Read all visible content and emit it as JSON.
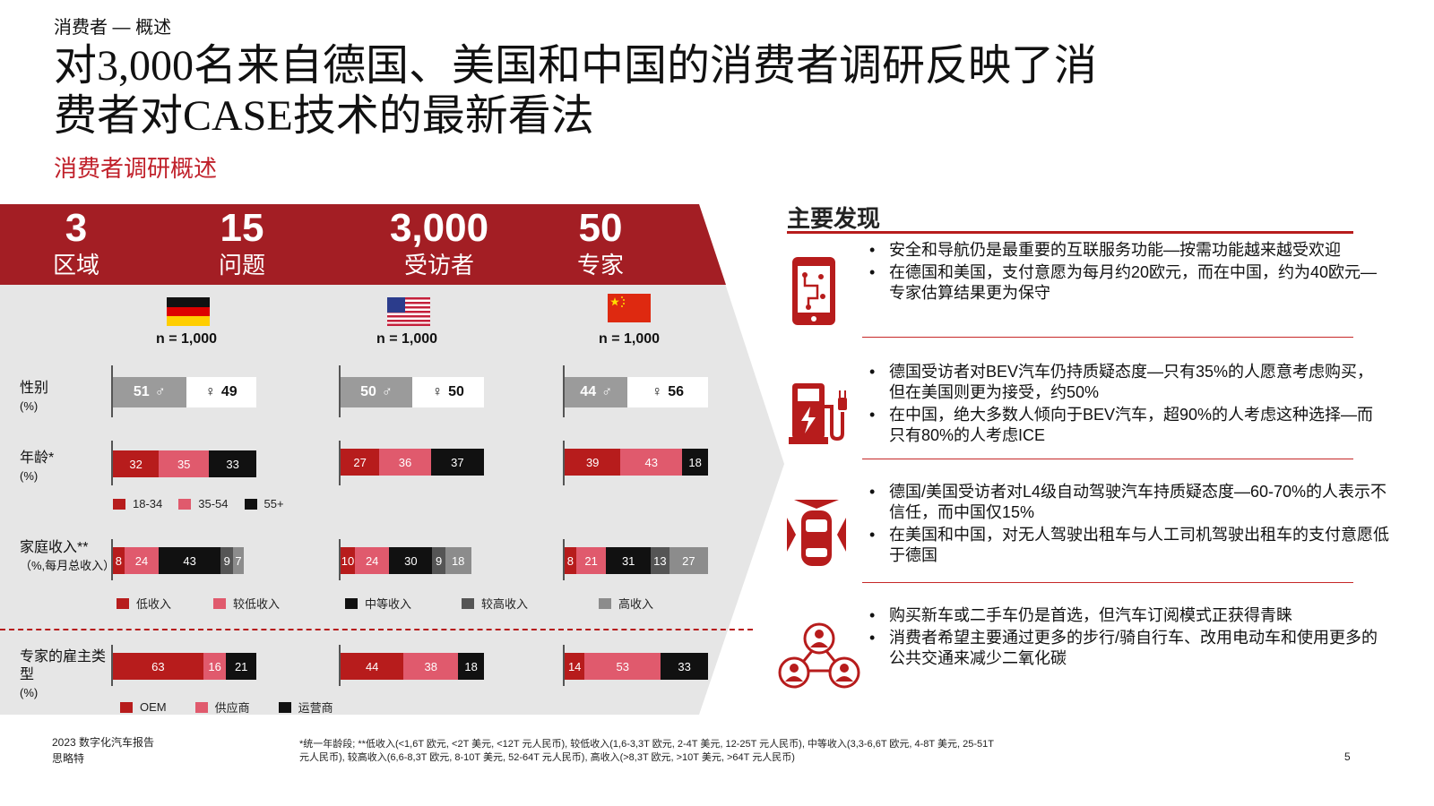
{
  "header": {
    "breadcrumb": "消费者 — 概述",
    "title_line1": "对3,000名来自德国、美国和中国的消费者调研反映了消",
    "title_line2": "费者对CASE技术的最新看法",
    "subtitle": "消费者调研概述"
  },
  "kpis": [
    {
      "num": "3",
      "label": "区域"
    },
    {
      "num": "15",
      "label": "问题"
    },
    {
      "num": "3,000",
      "label": "受访者"
    },
    {
      "num": "50",
      "label": "专家"
    }
  ],
  "countries": [
    {
      "name": "germany",
      "n": "n = 1,000"
    },
    {
      "name": "usa",
      "n": "n = 1,000"
    },
    {
      "name": "china",
      "n": "n = 1,000"
    }
  ],
  "row_labels": {
    "gender": "性别",
    "gender_unit": "(%)",
    "age": "年龄*",
    "age_unit": "(%)",
    "income": "家庭收入**",
    "income_unit": "（%,每月总收入）",
    "employer": "专家的雇主类型",
    "employer_unit": "(%)"
  },
  "colors": {
    "dark_red": "#b71c1c",
    "pink": "#e05a6d",
    "black": "#111111",
    "dark_grey": "#555555",
    "grey": "#8c8c8c",
    "light_grey": "#e6e6e6",
    "accent": "#b71c1c"
  },
  "gender": [
    {
      "male": "51",
      "female": "49",
      "male_pct": 51,
      "female_pct": 49
    },
    {
      "male": "50",
      "female": "50",
      "male_pct": 50,
      "female_pct": 50
    },
    {
      "male": "44",
      "female": "56",
      "male_pct": 44,
      "female_pct": 56
    }
  ],
  "age": [
    {
      "values": [
        32,
        35,
        33
      ],
      "labels": [
        "32",
        "35",
        "33"
      ]
    },
    {
      "values": [
        27,
        36,
        37
      ],
      "labels": [
        "27",
        "36",
        "37"
      ]
    },
    {
      "values": [
        39,
        43,
        18
      ],
      "labels": [
        "39",
        "43",
        "18"
      ]
    }
  ],
  "age_legend": [
    "18-34",
    "35-54",
    "55+"
  ],
  "income": [
    {
      "values": [
        8,
        24,
        43,
        9,
        7
      ],
      "labels": [
        "8",
        "24",
        "43",
        "9",
        "7"
      ]
    },
    {
      "values": [
        10,
        24,
        30,
        9,
        18
      ],
      "labels": [
        "10",
        "24",
        "30",
        "9",
        "18"
      ]
    },
    {
      "values": [
        8,
        21,
        31,
        13,
        27
      ],
      "labels": [
        "8",
        "21",
        "31",
        "13",
        "27"
      ]
    }
  ],
  "income_legend": [
    "低收入",
    "较低收入",
    "中等收入",
    "较高收入",
    "高收入"
  ],
  "employer": [
    {
      "values": [
        63,
        16,
        21
      ],
      "labels": [
        "63",
        "16",
        "21"
      ]
    },
    {
      "values": [
        44,
        38,
        18
      ],
      "labels": [
        "44",
        "38",
        "18"
      ]
    },
    {
      "values": [
        14,
        53,
        33
      ],
      "labels": [
        "14",
        "53",
        "33"
      ]
    }
  ],
  "employer_legend": [
    "OEM",
    "供应商",
    "运营商"
  ],
  "findings": {
    "title": "主要发现",
    "groups": [
      {
        "icon": "smartphone-icon",
        "bullets": [
          "安全和导航仍是最重要的互联服务功能—按需功能越来越受欢迎",
          "在德国和美国，支付意愿为每月约20欧元，而在中国，约为40欧元—专家估算结果更为保守"
        ]
      },
      {
        "icon": "ev-charger-icon",
        "bullets": [
          "德国受访者对BEV汽车仍持质疑态度—只有35%的人愿意考虑购买，但在美国则更为接受，约50%",
          "在中国，绝大多数人倾向于BEV汽车，超90%的人考虑这种选择—而只有80%的人考虑ICE"
        ]
      },
      {
        "icon": "autonomous-car-icon",
        "bullets": [
          "德国/美国受访者对L4级自动驾驶汽车持质疑态度—60-70%的人表示不信任，而中国仅15%",
          "在美国和中国，对无人驾驶出租车与人工司机驾驶出租车的支付意愿低于德国"
        ]
      },
      {
        "icon": "shared-mobility-icon",
        "bullets": [
          "购买新车或二手车仍是首选，但汽车订阅模式正获得青睐",
          "消费者希望主要通过更多的步行/骑自行车、改用电动车和使用更多的公共交通来减少二氧化碳"
        ]
      }
    ]
  },
  "footer": {
    "report": "2023  数字化汽车报告",
    "brand": "思略特",
    "note_line1": "*统一年龄段; **低收入(<1,6T 欧元, <2T 美元, <12T 元人民币), 较低收入(1,6-3,3T 欧元, 2-4T 美元, 12-25T 元人民币), 中等收入(3,3-6,6T 欧元, 4-8T 美元, 25-51T",
    "note_line2": "元人民币), 较高收入(6,6-8,3T 欧元, 8-10T 美元, 52-64T 元人民币), 高收入(>8,3T 欧元, >10T 美元, >64T 元人民币)",
    "page": "5"
  }
}
